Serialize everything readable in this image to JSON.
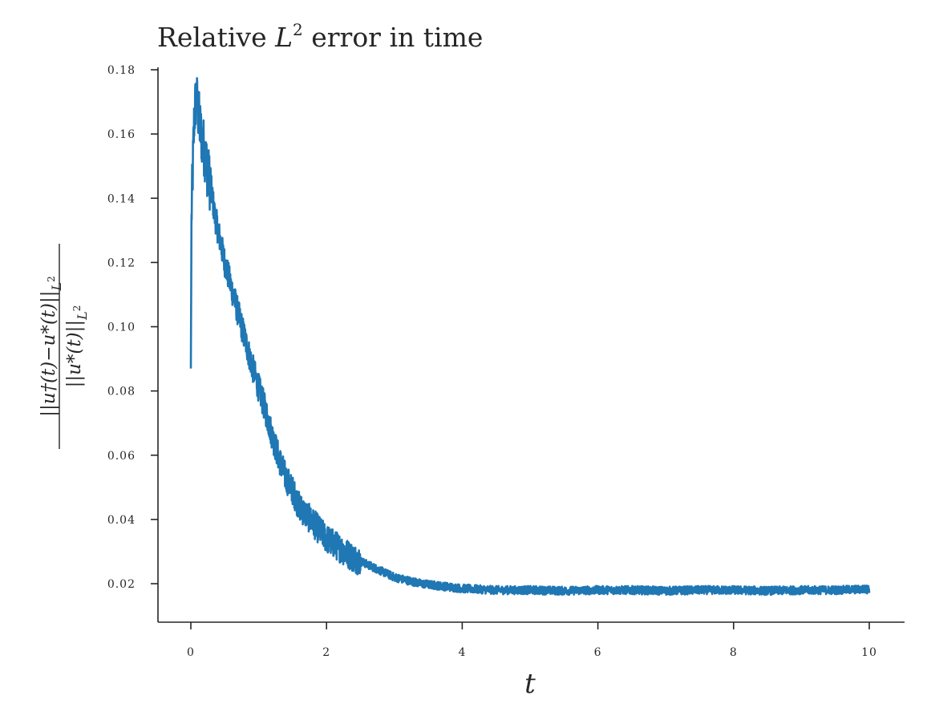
{
  "chart_data": {
    "type": "line",
    "title_prefix": "Relative ",
    "title_math": "L",
    "title_sup": "2",
    "title_suffix": " error in time",
    "xlabel": "t",
    "ylabel_numerator": "||u†(t)−u*(t)||",
    "ylabel_denominator": "||u*(t)||",
    "ylabel_subscript": "L",
    "ylabel_subscript_sup": "2",
    "xlim": [
      -0.5,
      10.5
    ],
    "ylim": [
      0.008,
      0.18
    ],
    "xticks": [
      0,
      2,
      4,
      6,
      8,
      10
    ],
    "xtick_labels": [
      "0",
      "2",
      "4",
      "6",
      "8",
      "10"
    ],
    "yticks": [
      0.02,
      0.04,
      0.06,
      0.08,
      0.1,
      0.12,
      0.14,
      0.16,
      0.18
    ],
    "ytick_labels": [
      "0.02",
      "0.04",
      "0.06",
      "0.08",
      "0.10",
      "0.12",
      "0.14",
      "0.16",
      "0.18"
    ],
    "grid": false,
    "legend": "none",
    "series": [
      {
        "color": "#1f77b4",
        "x": [
          0,
          0.01,
          0.03,
          0.05,
          0.08,
          0.1,
          0.15,
          0.2,
          0.25,
          0.3,
          0.35,
          0.4,
          0.5,
          0.6,
          0.7,
          0.8,
          0.9,
          1.0,
          1.1,
          1.2,
          1.3,
          1.4,
          1.5,
          1.6,
          1.8,
          2.0,
          2.2,
          2.4,
          2.6,
          2.8,
          3.0,
          3.2,
          3.4,
          3.6,
          3.8,
          4.0,
          4.5,
          5.0,
          5.5,
          6.0,
          6.5,
          7.0,
          7.5,
          8.0,
          8.5,
          9.0,
          9.5,
          10.0
        ],
        "y": [
          0.087,
          0.135,
          0.15,
          0.165,
          0.172,
          0.168,
          0.16,
          0.155,
          0.148,
          0.143,
          0.135,
          0.13,
          0.12,
          0.112,
          0.104,
          0.096,
          0.088,
          0.081,
          0.074,
          0.066,
          0.059,
          0.053,
          0.049,
          0.044,
          0.039,
          0.034,
          0.031,
          0.028,
          0.026,
          0.024,
          0.022,
          0.021,
          0.02,
          0.0195,
          0.019,
          0.0185,
          0.018,
          0.018,
          0.0178,
          0.018,
          0.018,
          0.0178,
          0.018,
          0.018,
          0.0178,
          0.018,
          0.018,
          0.0183
        ]
      }
    ]
  }
}
